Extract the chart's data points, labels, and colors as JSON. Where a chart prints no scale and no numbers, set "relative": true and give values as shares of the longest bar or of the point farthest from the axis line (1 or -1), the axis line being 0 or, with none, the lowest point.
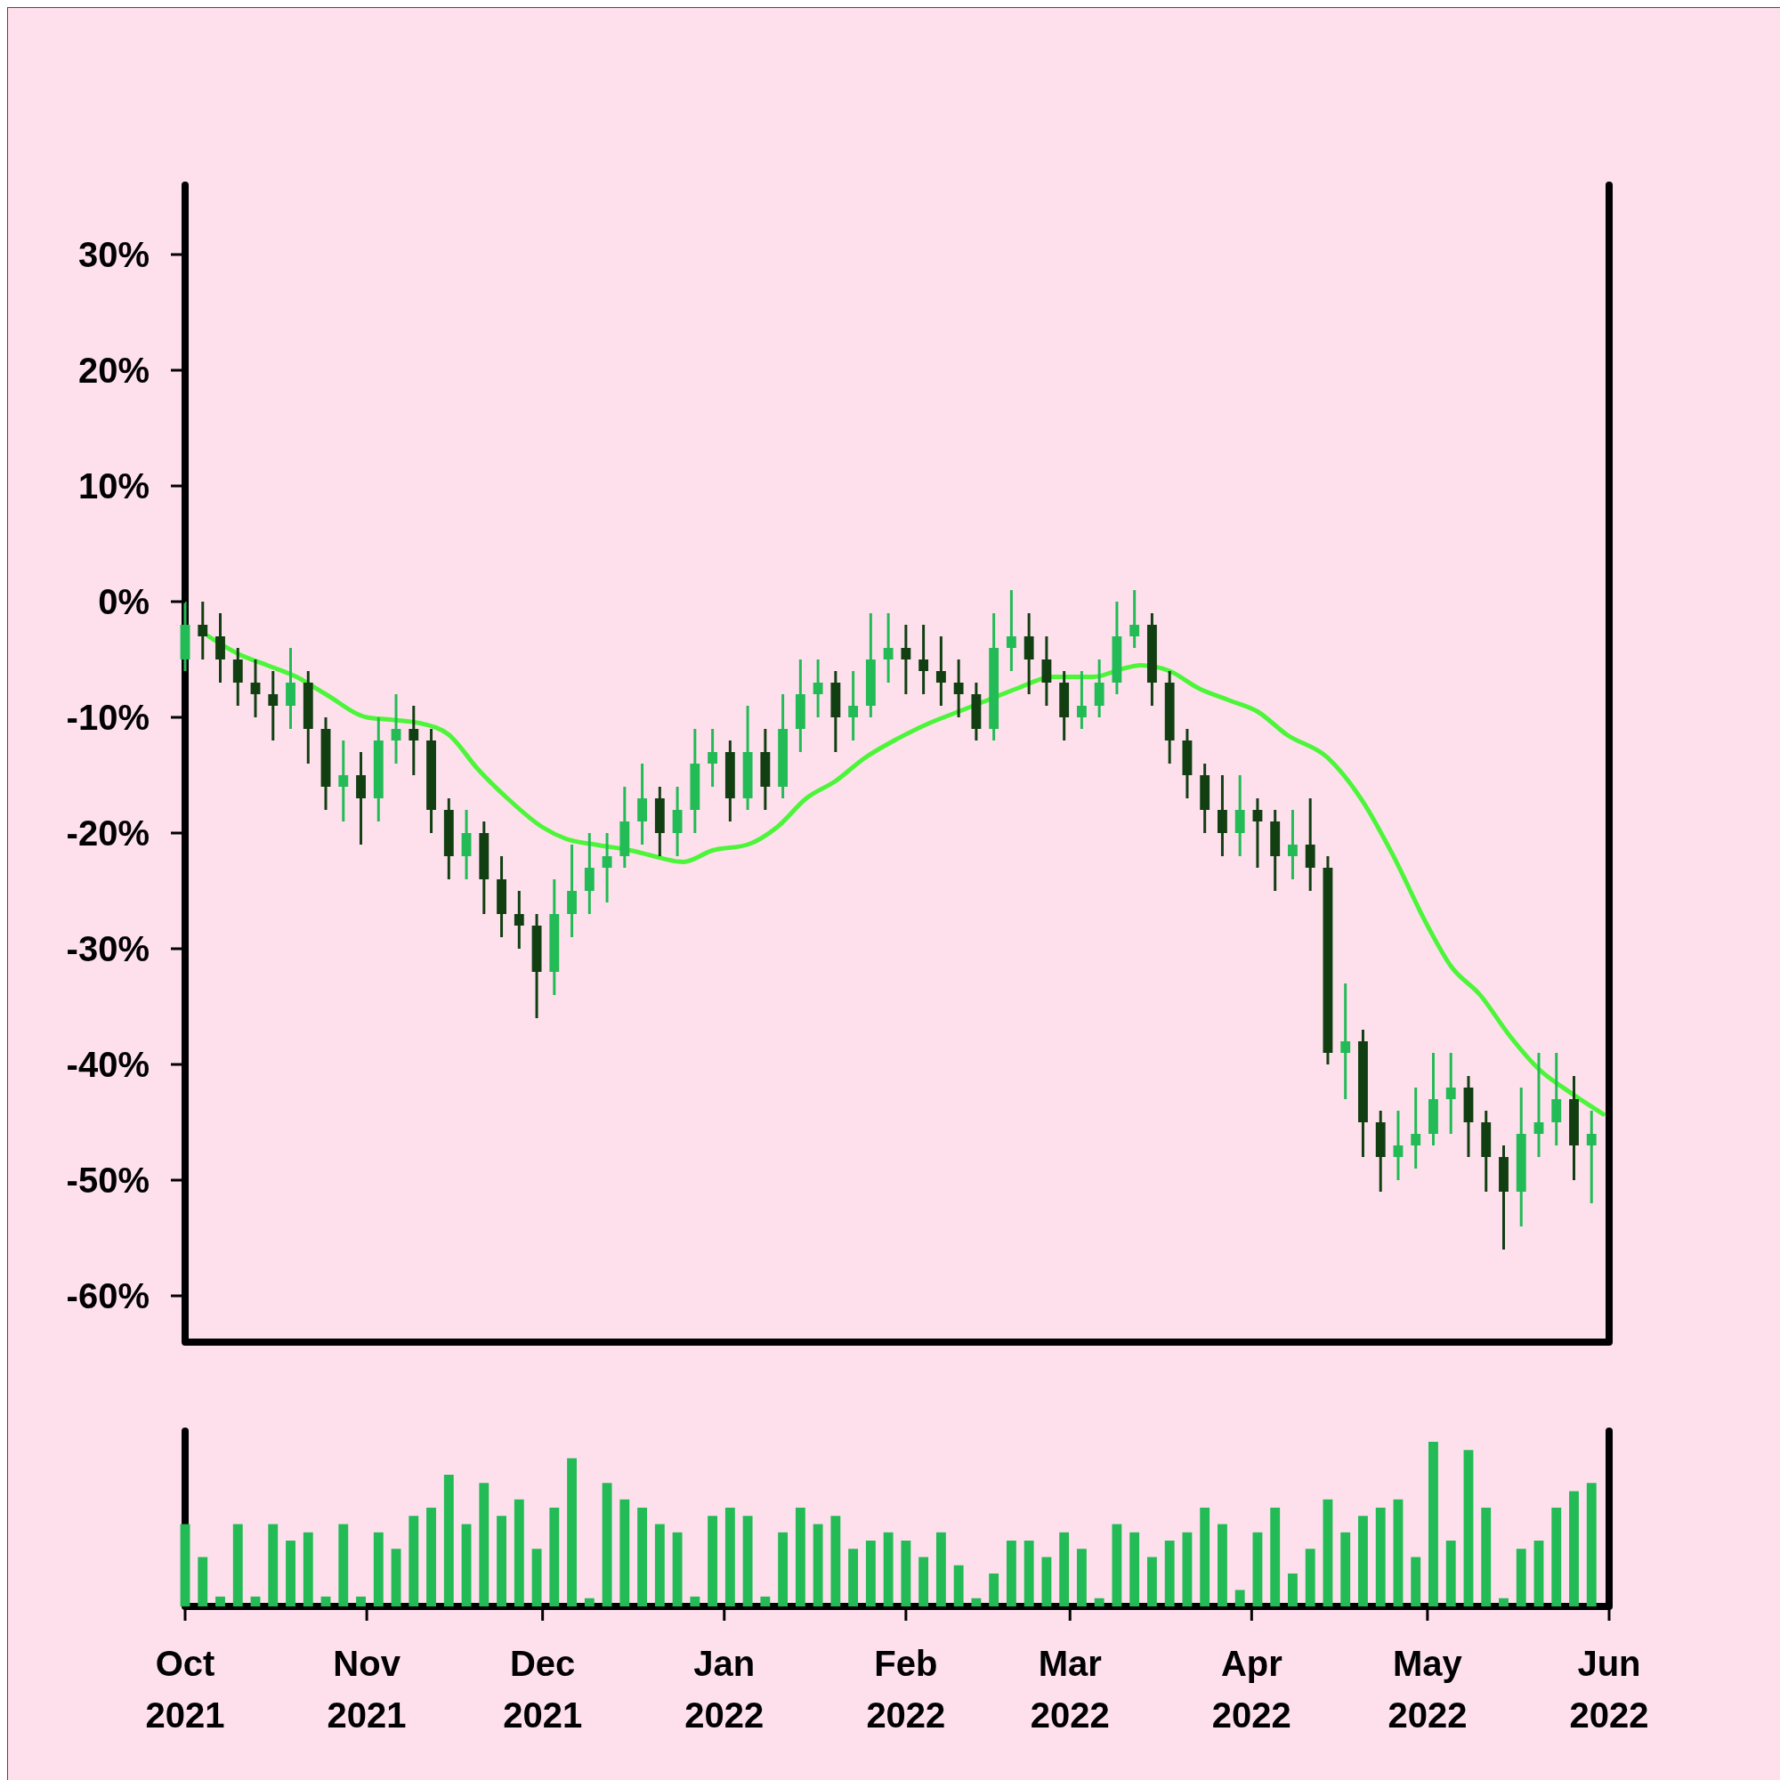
{
  "chart_data": [
    {
      "type": "candlestick",
      "x": [
        "2021-10-01",
        "2021-10-04",
        "2021-10-07",
        "2021-10-10",
        "2021-10-13",
        "2021-10-16",
        "2021-10-19",
        "2021-10-22",
        "2021-10-25",
        "2021-10-28",
        "2021-10-31",
        "2021-11-03",
        "2021-11-06",
        "2021-11-09",
        "2021-11-12",
        "2021-11-15",
        "2021-11-18",
        "2021-11-21",
        "2021-11-24",
        "2021-11-27",
        "2021-11-30",
        "2021-12-03",
        "2021-12-06",
        "2021-12-09",
        "2021-12-12",
        "2021-12-15",
        "2021-12-18",
        "2021-12-21",
        "2021-12-24",
        "2021-12-27",
        "2021-12-30",
        "2022-01-02",
        "2022-01-05",
        "2022-01-08",
        "2022-01-11",
        "2022-01-14",
        "2022-01-17",
        "2022-01-20",
        "2022-01-23",
        "2022-01-26",
        "2022-01-29",
        "2022-02-01",
        "2022-02-04",
        "2022-02-07",
        "2022-02-10",
        "2022-02-13",
        "2022-02-16",
        "2022-02-19",
        "2022-02-22",
        "2022-02-25",
        "2022-02-28",
        "2022-03-03",
        "2022-03-06",
        "2022-03-09",
        "2022-03-12",
        "2022-03-15",
        "2022-03-18",
        "2022-03-21",
        "2022-03-24",
        "2022-03-27",
        "2022-03-30",
        "2022-04-02",
        "2022-04-05",
        "2022-04-08",
        "2022-04-11",
        "2022-04-14",
        "2022-04-17",
        "2022-04-20",
        "2022-04-23",
        "2022-04-26",
        "2022-04-29",
        "2022-05-02",
        "2022-05-05",
        "2022-05-08",
        "2022-05-11",
        "2022-05-14",
        "2022-05-17",
        "2022-05-20",
        "2022-05-23",
        "2022-05-26",
        "2022-05-29"
      ],
      "ohlc": [
        [
          -5,
          0,
          -6,
          -2
        ],
        [
          -2,
          0,
          -5,
          -3
        ],
        [
          -3,
          -1,
          -7,
          -5
        ],
        [
          -5,
          -4,
          -9,
          -7
        ],
        [
          -7,
          -5,
          -10,
          -8
        ],
        [
          -8,
          -6,
          -12,
          -9
        ],
        [
          -9,
          -4,
          -11,
          -7
        ],
        [
          -7,
          -6,
          -14,
          -11
        ],
        [
          -11,
          -10,
          -18,
          -16
        ],
        [
          -16,
          -12,
          -19,
          -15
        ],
        [
          -15,
          -13,
          -21,
          -17
        ],
        [
          -17,
          -10,
          -19,
          -12
        ],
        [
          -12,
          -8,
          -14,
          -11
        ],
        [
          -11,
          -9,
          -15,
          -12
        ],
        [
          -12,
          -11,
          -20,
          -18
        ],
        [
          -18,
          -17,
          -24,
          -22
        ],
        [
          -22,
          -18,
          -24,
          -20
        ],
        [
          -20,
          -19,
          -27,
          -24
        ],
        [
          -24,
          -22,
          -29,
          -27
        ],
        [
          -27,
          -25,
          -30,
          -28
        ],
        [
          -28,
          -27,
          -36,
          -32
        ],
        [
          -32,
          -24,
          -34,
          -27
        ],
        [
          -27,
          -21,
          -29,
          -25
        ],
        [
          -25,
          -20,
          -27,
          -23
        ],
        [
          -23,
          -20,
          -26,
          -22
        ],
        [
          -22,
          -16,
          -23,
          -19
        ],
        [
          -19,
          -14,
          -21,
          -17
        ],
        [
          -17,
          -16,
          -22,
          -20
        ],
        [
          -20,
          -16,
          -22,
          -18
        ],
        [
          -18,
          -11,
          -20,
          -14
        ],
        [
          -14,
          -11,
          -16,
          -13
        ],
        [
          -13,
          -12,
          -19,
          -17
        ],
        [
          -17,
          -9,
          -18,
          -13
        ],
        [
          -13,
          -11,
          -18,
          -16
        ],
        [
          -16,
          -8,
          -17,
          -11
        ],
        [
          -11,
          -5,
          -13,
          -8
        ],
        [
          -8,
          -5,
          -10,
          -7
        ],
        [
          -7,
          -6,
          -13,
          -10
        ],
        [
          -10,
          -6,
          -12,
          -9
        ],
        [
          -9,
          -1,
          -10,
          -5
        ],
        [
          -5,
          -1,
          -7,
          -4
        ],
        [
          -4,
          -2,
          -8,
          -5
        ],
        [
          -5,
          -2,
          -8,
          -6
        ],
        [
          -6,
          -3,
          -9,
          -7
        ],
        [
          -7,
          -5,
          -10,
          -8
        ],
        [
          -8,
          -7,
          -12,
          -11
        ],
        [
          -11,
          -1,
          -12,
          -4
        ],
        [
          -4,
          1,
          -6,
          -3
        ],
        [
          -3,
          -1,
          -8,
          -5
        ],
        [
          -5,
          -3,
          -9,
          -7
        ],
        [
          -7,
          -6,
          -12,
          -10
        ],
        [
          -10,
          -6,
          -11,
          -9
        ],
        [
          -9,
          -5,
          -10,
          -7
        ],
        [
          -7,
          0,
          -8,
          -3
        ],
        [
          -3,
          1,
          -4,
          -2
        ],
        [
          -2,
          -1,
          -9,
          -7
        ],
        [
          -7,
          -6,
          -14,
          -12
        ],
        [
          -12,
          -11,
          -17,
          -15
        ],
        [
          -15,
          -14,
          -20,
          -18
        ],
        [
          -18,
          -15,
          -22,
          -20
        ],
        [
          -20,
          -15,
          -22,
          -18
        ],
        [
          -18,
          -17,
          -23,
          -19
        ],
        [
          -19,
          -18,
          -25,
          -22
        ],
        [
          -22,
          -18,
          -24,
          -21
        ],
        [
          -21,
          -17,
          -25,
          -23
        ],
        [
          -23,
          -22,
          -40,
          -39
        ],
        [
          -39,
          -33,
          -43,
          -38
        ],
        [
          -38,
          -37,
          -48,
          -45
        ],
        [
          -45,
          -44,
          -51,
          -48
        ],
        [
          -48,
          -44,
          -50,
          -47
        ],
        [
          -47,
          -42,
          -49,
          -46
        ],
        [
          -46,
          -39,
          -47,
          -43
        ],
        [
          -43,
          -39,
          -46,
          -42
        ],
        [
          -42,
          -41,
          -48,
          -45
        ],
        [
          -45,
          -44,
          -51,
          -48
        ],
        [
          -48,
          -47,
          -56,
          -51
        ],
        [
          -51,
          -42,
          -54,
          -46
        ],
        [
          -46,
          -39,
          -48,
          -45
        ],
        [
          -45,
          -39,
          -47,
          -43
        ],
        [
          -43,
          -41,
          -50,
          -47
        ],
        [
          -47,
          -44,
          -52,
          -46
        ]
      ],
      "colors": [
        "#22bb55",
        "#123f12",
        "#123f12",
        "#123f12",
        "#123f12",
        "#123f12",
        "#22bb55",
        "#123f12",
        "#123f12",
        "#22bb55",
        "#123f12",
        "#22bb55",
        "#22bb55",
        "#123f12",
        "#123f12",
        "#123f12",
        "#22bb55",
        "#123f12",
        "#123f12",
        "#123f12",
        "#123f12",
        "#22bb55",
        "#22bb55",
        "#22bb55",
        "#22bb55",
        "#22bb55",
        "#22bb55",
        "#123f12",
        "#22bb55",
        "#22bb55",
        "#22bb55",
        "#123f12",
        "#22bb55",
        "#123f12",
        "#22bb55",
        "#22bb55",
        "#22bb55",
        "#123f12",
        "#22bb55",
        "#22bb55",
        "#22bb55",
        "#123f12",
        "#123f12",
        "#123f12",
        "#123f12",
        "#123f12",
        "#22bb55",
        "#22bb55",
        "#123f12",
        "#123f12",
        "#123f12",
        "#22bb55",
        "#22bb55",
        "#22bb55",
        "#22bb55",
        "#123f12",
        "#123f12",
        "#123f12",
        "#123f12",
        "#123f12",
        "#22bb55",
        "#123f12",
        "#123f12",
        "#22bb55",
        "#123f12",
        "#123f12",
        "#22bb55",
        "#123f12",
        "#123f12",
        "#22bb55",
        "#22bb55",
        "#22bb55",
        "#22bb55",
        "#123f12",
        "#123f12",
        "#123f12",
        "#22bb55",
        "#22bb55",
        "#22bb55",
        "#123f12",
        "#22bb55"
      ],
      "series": [
        {
          "type": "line",
          "color": "#4cf53a",
          "x": [
            "2021-10-05",
            "2021-10-10",
            "2021-10-15",
            "2021-10-20",
            "2021-10-25",
            "2021-11-01",
            "2021-11-05",
            "2021-11-10",
            "2021-11-15",
            "2021-11-20",
            "2021-11-25",
            "2021-12-01",
            "2021-12-05",
            "2021-12-10",
            "2021-12-16",
            "2021-12-20",
            "2021-12-25",
            "2021-12-30",
            "2022-01-05",
            "2022-01-10",
            "2022-01-15",
            "2022-01-20",
            "2022-01-25",
            "2022-01-30",
            "2022-02-05",
            "2022-02-10",
            "2022-02-15",
            "2022-02-20",
            "2022-02-26",
            "2022-03-01",
            "2022-03-05",
            "2022-03-10",
            "2022-03-13",
            "2022-03-18",
            "2022-03-23",
            "2022-03-28",
            "2022-04-02",
            "2022-04-07",
            "2022-04-14",
            "2022-04-20",
            "2022-04-25",
            "2022-05-01",
            "2022-05-05",
            "2022-05-10",
            "2022-05-15",
            "2022-05-20",
            "2022-05-25",
            "2022-05-31"
          ],
          "values": [
            -3,
            -4.5,
            -5.5,
            -6.5,
            -8,
            -10,
            -10.2,
            -10.5,
            -11.5,
            -14.5,
            -17,
            -19.5,
            -20.5,
            -21,
            -21.5,
            -22,
            -22.5,
            -21.5,
            -21,
            -19.5,
            -17,
            -15.5,
            -13.5,
            -12,
            -10.5,
            -9.5,
            -8.5,
            -7.5,
            -6.5,
            -6.5,
            -6.5,
            -5.8,
            -5.5,
            -6,
            -7.5,
            -8.5,
            -9.5,
            -11.5,
            -13.5,
            -17.3,
            -21.8,
            -28,
            -31.5,
            -34,
            -37.5,
            -40.4,
            -42.3,
            -44.3
          ]
        }
      ],
      "xlim": [
        "2021-10-01",
        "2022-06-01"
      ],
      "ylim": [
        -64,
        36
      ],
      "yticks": [
        {
          "value": -60,
          "label": "-60%"
        },
        {
          "value": -50,
          "label": "-50%"
        },
        {
          "value": -40,
          "label": "-40%"
        },
        {
          "value": -30,
          "label": "-30%"
        },
        {
          "value": -20,
          "label": "-20%"
        },
        {
          "value": -10,
          "label": "-10%"
        },
        {
          "value": 0,
          "label": "0%"
        },
        {
          "value": 10,
          "label": "10%"
        },
        {
          "value": 20,
          "label": "20%"
        },
        {
          "value": 30,
          "label": "30%"
        }
      ],
      "tick_labels": "y"
    },
    {
      "type": "bar",
      "relative": true,
      "color": "#22bb55",
      "x": [
        "2021-10-01",
        "2021-10-04",
        "2021-10-07",
        "2021-10-10",
        "2021-10-13",
        "2021-10-16",
        "2021-10-19",
        "2021-10-22",
        "2021-10-25",
        "2021-10-28",
        "2021-10-31",
        "2021-11-03",
        "2021-11-06",
        "2021-11-09",
        "2021-11-12",
        "2021-11-15",
        "2021-11-18",
        "2021-11-21",
        "2021-11-24",
        "2021-11-27",
        "2021-11-30",
        "2021-12-03",
        "2021-12-06",
        "2021-12-09",
        "2021-12-12",
        "2021-12-15",
        "2021-12-18",
        "2021-12-21",
        "2021-12-24",
        "2021-12-27",
        "2021-12-30",
        "2022-01-02",
        "2022-01-05",
        "2022-01-08",
        "2022-01-11",
        "2022-01-14",
        "2022-01-17",
        "2022-01-20",
        "2022-01-23",
        "2022-01-26",
        "2022-01-29",
        "2022-02-01",
        "2022-02-04",
        "2022-02-07",
        "2022-02-10",
        "2022-02-13",
        "2022-02-16",
        "2022-02-19",
        "2022-02-22",
        "2022-02-25",
        "2022-02-28",
        "2022-03-03",
        "2022-03-06",
        "2022-03-09",
        "2022-03-12",
        "2022-03-15",
        "2022-03-18",
        "2022-03-21",
        "2022-03-24",
        "2022-03-27",
        "2022-03-30",
        "2022-04-02",
        "2022-04-05",
        "2022-04-08",
        "2022-04-11",
        "2022-04-14",
        "2022-04-17",
        "2022-04-20",
        "2022-04-23",
        "2022-04-26",
        "2022-04-29",
        "2022-05-02",
        "2022-05-05",
        "2022-05-08",
        "2022-05-11",
        "2022-05-14",
        "2022-05-17",
        "2022-05-20",
        "2022-05-23",
        "2022-05-26",
        "2022-05-29"
      ],
      "values": [
        0.5,
        0.3,
        0.06,
        0.5,
        0.06,
        0.5,
        0.4,
        0.45,
        0.06,
        0.5,
        0.06,
        0.45,
        0.35,
        0.55,
        0.6,
        0.8,
        0.5,
        0.75,
        0.55,
        0.65,
        0.35,
        0.6,
        0.9,
        0.05,
        0.75,
        0.65,
        0.6,
        0.5,
        0.45,
        0.06,
        0.55,
        0.6,
        0.55,
        0.06,
        0.45,
        0.6,
        0.5,
        0.55,
        0.35,
        0.4,
        0.45,
        0.4,
        0.3,
        0.45,
        0.25,
        0.05,
        0.2,
        0.4,
        0.4,
        0.3,
        0.45,
        0.35,
        0.05,
        0.5,
        0.45,
        0.3,
        0.4,
        0.45,
        0.6,
        0.5,
        0.1,
        0.45,
        0.6,
        0.2,
        0.35,
        0.65,
        0.45,
        0.55,
        0.6,
        0.65,
        0.3,
        1.0,
        0.4,
        0.95,
        0.6,
        0.05,
        0.35,
        0.4,
        0.6,
        0.7,
        0.75
      ],
      "xlim": [
        "2021-10-01",
        "2022-06-01"
      ],
      "xticks": [
        {
          "value": "2021-10-01",
          "label": "Oct\n2021"
        },
        {
          "value": "2021-11-01",
          "label": "Nov\n2021"
        },
        {
          "value": "2021-12-01",
          "label": "Dec\n2021"
        },
        {
          "value": "2022-01-01",
          "label": "Jan\n2022"
        },
        {
          "value": "2022-02-01",
          "label": "Feb\n2022"
        },
        {
          "value": "2022-03-01",
          "label": "Mar\n2022"
        },
        {
          "value": "2022-04-01",
          "label": "Apr\n2022"
        },
        {
          "value": "2022-05-01",
          "label": "May\n2022"
        },
        {
          "value": "2022-06-01",
          "label": "Jun\n2022"
        }
      ],
      "tick_labels": "x"
    }
  ]
}
